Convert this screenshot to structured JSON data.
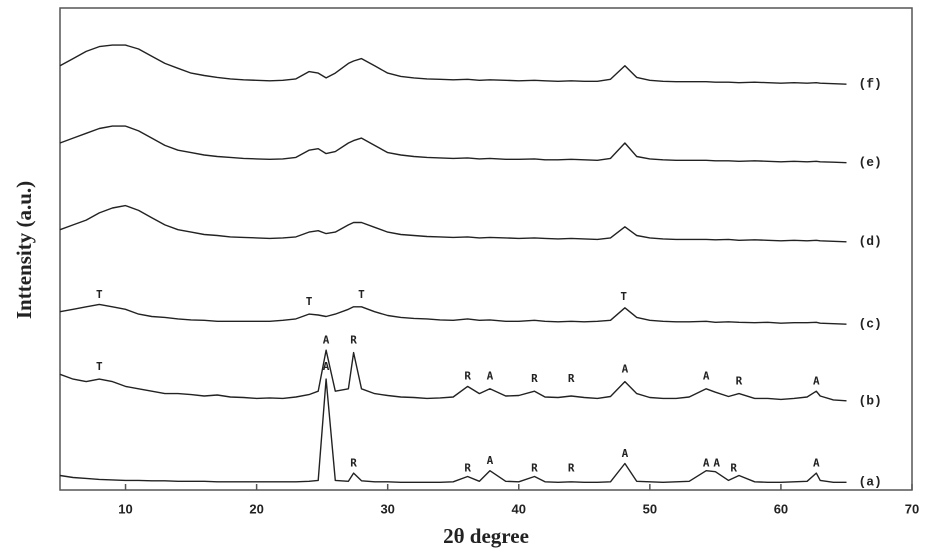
{
  "chart_data": {
    "type": "line",
    "x_label": "2θ degree",
    "y_label": "Inttensity (a.u.)",
    "xlim": [
      5,
      70
    ],
    "xticks": [
      10,
      20,
      30,
      40,
      50,
      60,
      70
    ],
    "ylim": [
      0,
      100
    ],
    "x": [
      5,
      6,
      7,
      8,
      9,
      10,
      11,
      12,
      13,
      14,
      15,
      16,
      17,
      18,
      19,
      20,
      21,
      22,
      23,
      24,
      24.7,
      25.3,
      26,
      27,
      27.4,
      28,
      29,
      30,
      31,
      32,
      33,
      34,
      35,
      36.1,
      37,
      37.8,
      39,
      40,
      41.2,
      42,
      43,
      44,
      45,
      46,
      47,
      48.1,
      49,
      50,
      51,
      52,
      53,
      54.3,
      55,
      56,
      56.8,
      58,
      59,
      60,
      61,
      62,
      62.7,
      63,
      64,
      65
    ],
    "series": [
      {
        "name": "(a)",
        "color": "#222222",
        "values": [
          3,
          2.6,
          2.4,
          2.2,
          2.1,
          2,
          2,
          1.9,
          1.9,
          1.8,
          1.8,
          1.8,
          1.7,
          1.7,
          1.7,
          1.7,
          1.7,
          1.7,
          1.7,
          1.8,
          2,
          23,
          2,
          1.8,
          3.5,
          1.9,
          1.7,
          1.7,
          1.6,
          1.6,
          1.6,
          1.6,
          1.7,
          2.8,
          1.8,
          4,
          1.8,
          1.7,
          2.8,
          1.7,
          1.6,
          1.7,
          1.6,
          1.6,
          1.7,
          5.5,
          1.8,
          1.7,
          1.6,
          1.7,
          1.8,
          4,
          3.8,
          2,
          3,
          1.7,
          1.6,
          1.6,
          1.7,
          1.8,
          3.5,
          2,
          1.6,
          1.6
        ]
      },
      {
        "name": "(b)",
        "color": "#222222",
        "values": [
          24,
          23,
          22.5,
          23,
          22.5,
          21.5,
          21,
          20.5,
          20,
          20,
          19.8,
          19.5,
          19.7,
          19.3,
          19.2,
          19,
          19.1,
          19,
          19.3,
          19.8,
          20.5,
          29,
          20.5,
          21,
          28.5,
          21,
          20,
          19.6,
          19.3,
          19.2,
          19,
          19.1,
          19.3,
          21.5,
          20,
          21,
          19.5,
          19.6,
          20.5,
          19.3,
          19.2,
          19.5,
          19.2,
          19,
          19.4,
          22.5,
          20,
          19.2,
          19,
          19,
          19.3,
          21,
          20.3,
          19.4,
          20,
          19,
          19,
          18.8,
          19,
          19.3,
          20.5,
          19.5,
          18.7,
          18.5
        ]
      },
      {
        "name": "(c)",
        "color": "#222222",
        "values": [
          37,
          37.5,
          38,
          38.5,
          38,
          37.5,
          36.5,
          36,
          35.8,
          35.5,
          35.3,
          35.2,
          35,
          35,
          35,
          35,
          35,
          35.2,
          35.5,
          36.5,
          36.3,
          36,
          36.5,
          37.5,
          38,
          38,
          37,
          36.2,
          35.8,
          35.6,
          35.5,
          35.3,
          35.2,
          35.5,
          35.2,
          35.3,
          35,
          35,
          35.2,
          35,
          34.9,
          35,
          34.9,
          35,
          35.2,
          37.8,
          35.8,
          35.2,
          35,
          34.9,
          34.9,
          35,
          34.8,
          34.9,
          34.8,
          34.7,
          34.8,
          34.6,
          34.7,
          34.7,
          34.8,
          34.6,
          34.5,
          34.4
        ]
      },
      {
        "name": "(d)",
        "color": "#222222",
        "values": [
          54,
          55,
          56,
          57.5,
          58.5,
          59,
          58,
          56.5,
          55,
          54,
          53.5,
          53,
          52.8,
          52.5,
          52.4,
          52.3,
          52.2,
          52.3,
          52.5,
          53.5,
          53.8,
          53.2,
          53.5,
          55,
          55.5,
          55.5,
          54.5,
          53.5,
          53,
          52.8,
          52.6,
          52.5,
          52.4,
          52.5,
          52.3,
          52.4,
          52.3,
          52.2,
          52.3,
          52.2,
          52.1,
          52.2,
          52.1,
          52,
          52.3,
          54.6,
          52.8,
          52.3,
          52.1,
          52,
          52,
          52,
          51.9,
          52,
          51.8,
          51.9,
          51.8,
          51.7,
          51.8,
          51.7,
          51.8,
          51.7,
          51.6,
          51.5
        ]
      },
      {
        "name": "(e)",
        "color": "#222222",
        "values": [
          72,
          73,
          74,
          75,
          75.5,
          75.5,
          74.5,
          73,
          71.5,
          70.5,
          70,
          69.5,
          69.2,
          69,
          68.8,
          68.7,
          68.6,
          68.7,
          69,
          70.5,
          70.8,
          69.8,
          70.2,
          72,
          72.5,
          73,
          71.5,
          70,
          69.5,
          69.2,
          69,
          68.9,
          68.8,
          68.9,
          68.7,
          68.8,
          68.6,
          68.6,
          68.7,
          68.5,
          68.5,
          68.6,
          68.5,
          68.4,
          68.8,
          72,
          69.2,
          68.7,
          68.5,
          68.4,
          68.4,
          68.4,
          68.3,
          68.3,
          68.2,
          68.3,
          68.2,
          68.1,
          68.2,
          68.1,
          68.2,
          68.1,
          68,
          67.9
        ]
      },
      {
        "name": "(f)",
        "color": "#222222",
        "values": [
          88,
          89.5,
          91,
          92,
          92.3,
          92.3,
          91.5,
          90,
          88.5,
          87.5,
          86.5,
          86,
          85.6,
          85.3,
          85.1,
          85,
          84.9,
          85,
          85.3,
          86.8,
          86.5,
          85.5,
          86.5,
          88.5,
          89,
          89.5,
          88,
          86.5,
          85.8,
          85.5,
          85.3,
          85.2,
          85.1,
          85.2,
          85,
          85.1,
          85,
          84.9,
          85,
          84.9,
          84.8,
          84.9,
          84.8,
          84.8,
          85.2,
          88,
          85.6,
          85,
          84.8,
          84.7,
          84.7,
          84.7,
          84.6,
          84.6,
          84.5,
          84.6,
          84.5,
          84.4,
          84.5,
          84.4,
          84.5,
          84.4,
          84.3,
          84.2
        ]
      }
    ],
    "annotations": [
      {
        "text": "T",
        "x": 8,
        "y": 40.5
      },
      {
        "text": "T",
        "x": 24,
        "y": 39
      },
      {
        "text": "T",
        "x": 28,
        "y": 40.5
      },
      {
        "text": "T",
        "x": 48,
        "y": 40
      },
      {
        "text": "T",
        "x": 8,
        "y": 25.5
      },
      {
        "text": "A",
        "x": 25.3,
        "y": 31
      },
      {
        "text": "R",
        "x": 27.4,
        "y": 31
      },
      {
        "text": "R",
        "x": 36.1,
        "y": 23.5
      },
      {
        "text": "A",
        "x": 37.8,
        "y": 23.5
      },
      {
        "text": "R",
        "x": 41.2,
        "y": 23
      },
      {
        "text": "R",
        "x": 44,
        "y": 23
      },
      {
        "text": "A",
        "x": 48.1,
        "y": 25
      },
      {
        "text": "A",
        "x": 54.3,
        "y": 23.5
      },
      {
        "text": "R",
        "x": 56.8,
        "y": 22.5
      },
      {
        "text": "A",
        "x": 62.7,
        "y": 22.5
      },
      {
        "text": "A",
        "x": 25.3,
        "y": 25.5
      },
      {
        "text": "R",
        "x": 27.4,
        "y": 5.5
      },
      {
        "text": "R",
        "x": 36.1,
        "y": 4.5
      },
      {
        "text": "A",
        "x": 37.8,
        "y": 6
      },
      {
        "text": "R",
        "x": 41.2,
        "y": 4.5
      },
      {
        "text": "R",
        "x": 44,
        "y": 4.5
      },
      {
        "text": "A",
        "x": 48.1,
        "y": 7.5
      },
      {
        "text": "A",
        "x": 54.3,
        "y": 5.5
      },
      {
        "text": "A",
        "x": 55.1,
        "y": 5.5
      },
      {
        "text": "R",
        "x": 56.4,
        "y": 4.5
      },
      {
        "text": "A",
        "x": 62.7,
        "y": 5.5
      }
    ]
  }
}
